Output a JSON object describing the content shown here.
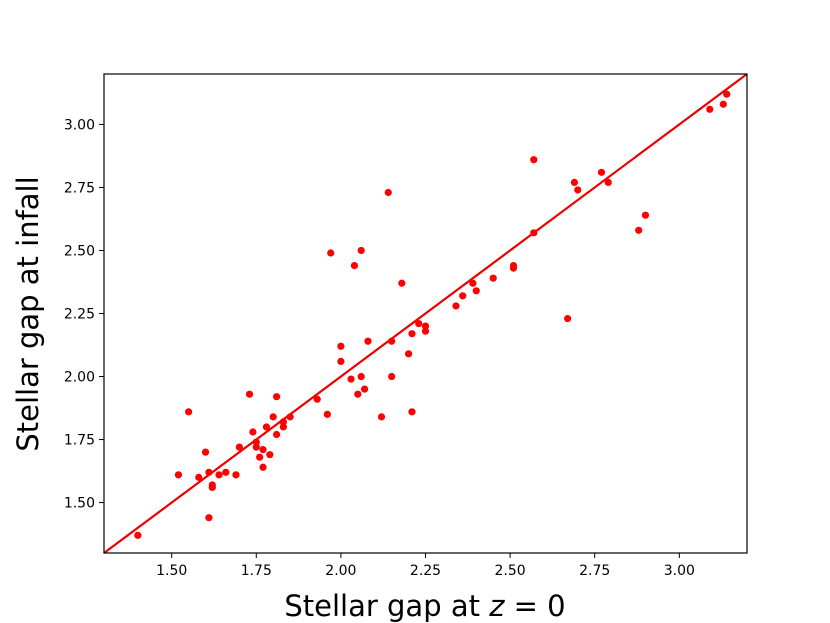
{
  "chart_data": {
    "type": "scatter",
    "xlabel_prefix": "Stellar gap at ",
    "xlabel_var": "z",
    "xlabel_suffix": " = 0",
    "ylabel": "Stellar gap at infall",
    "xlim": [
      1.3,
      3.2
    ],
    "ylim": [
      1.3,
      3.2
    ],
    "xticks": [
      1.5,
      1.75,
      2.0,
      2.25,
      2.5,
      2.75,
      3.0
    ],
    "yticks": [
      1.5,
      1.75,
      2.0,
      2.25,
      2.5,
      2.75,
      3.0
    ],
    "xtick_labels": [
      "1.50",
      "1.75",
      "2.00",
      "2.25",
      "2.50",
      "2.75",
      "3.00"
    ],
    "ytick_labels": [
      "1.50",
      "1.75",
      "2.00",
      "2.25",
      "2.50",
      "2.75",
      "3.00"
    ],
    "grid": false,
    "point_color": "#ff0000",
    "line_color": "#ee0000",
    "fit_line": {
      "x": [
        1.3,
        3.2
      ],
      "y": [
        1.3,
        3.2
      ]
    },
    "points": [
      [
        1.4,
        1.37
      ],
      [
        1.52,
        1.61
      ],
      [
        1.55,
        1.86
      ],
      [
        1.58,
        1.6
      ],
      [
        1.6,
        1.7
      ],
      [
        1.61,
        1.62
      ],
      [
        1.61,
        1.44
      ],
      [
        1.62,
        1.56
      ],
      [
        1.62,
        1.57
      ],
      [
        1.64,
        1.61
      ],
      [
        1.66,
        1.62
      ],
      [
        1.69,
        1.61
      ],
      [
        1.7,
        1.72
      ],
      [
        1.73,
        1.93
      ],
      [
        1.74,
        1.78
      ],
      [
        1.75,
        1.72
      ],
      [
        1.75,
        1.74
      ],
      [
        1.76,
        1.68
      ],
      [
        1.77,
        1.71
      ],
      [
        1.77,
        1.64
      ],
      [
        1.78,
        1.8
      ],
      [
        1.79,
        1.69
      ],
      [
        1.8,
        1.84
      ],
      [
        1.81,
        1.92
      ],
      [
        1.81,
        1.77
      ],
      [
        1.83,
        1.8
      ],
      [
        1.83,
        1.82
      ],
      [
        1.85,
        1.84
      ],
      [
        1.93,
        1.91
      ],
      [
        1.96,
        1.85
      ],
      [
        1.97,
        2.49
      ],
      [
        2.0,
        2.06
      ],
      [
        2.0,
        2.12
      ],
      [
        2.03,
        1.99
      ],
      [
        2.04,
        2.44
      ],
      [
        2.05,
        1.93
      ],
      [
        2.06,
        2.0
      ],
      [
        2.06,
        2.5
      ],
      [
        2.07,
        1.95
      ],
      [
        2.08,
        2.14
      ],
      [
        2.12,
        1.84
      ],
      [
        2.14,
        2.73
      ],
      [
        2.15,
        2.0
      ],
      [
        2.15,
        2.14
      ],
      [
        2.18,
        2.37
      ],
      [
        2.2,
        2.09
      ],
      [
        2.21,
        2.17
      ],
      [
        2.21,
        1.86
      ],
      [
        2.23,
        2.21
      ],
      [
        2.25,
        2.2
      ],
      [
        2.25,
        2.18
      ],
      [
        2.34,
        2.28
      ],
      [
        2.36,
        2.32
      ],
      [
        2.39,
        2.37
      ],
      [
        2.4,
        2.34
      ],
      [
        2.45,
        2.39
      ],
      [
        2.51,
        2.43
      ],
      [
        2.51,
        2.44
      ],
      [
        2.57,
        2.86
      ],
      [
        2.57,
        2.57
      ],
      [
        2.67,
        2.23
      ],
      [
        2.69,
        2.77
      ],
      [
        2.7,
        2.74
      ],
      [
        2.77,
        2.81
      ],
      [
        2.79,
        2.77
      ],
      [
        2.88,
        2.58
      ],
      [
        2.9,
        2.64
      ],
      [
        3.09,
        3.06
      ],
      [
        3.13,
        3.08
      ],
      [
        3.14,
        3.12
      ]
    ]
  }
}
